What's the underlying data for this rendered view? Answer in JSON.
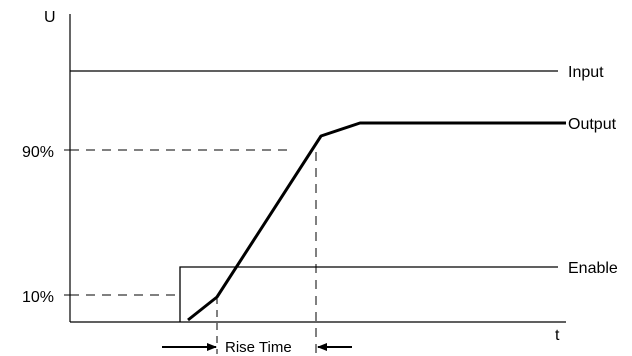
{
  "diagram": {
    "y_axis_label": "U",
    "x_axis_label": "t",
    "tick_labels": {
      "ninety": "90%",
      "ten": "10%"
    },
    "signals": {
      "input": "Input",
      "output": "Output",
      "enable": "Enable"
    },
    "rise_time_label": "Rise Time",
    "colors": {
      "line": "#000000",
      "background": "#ffffff"
    }
  }
}
